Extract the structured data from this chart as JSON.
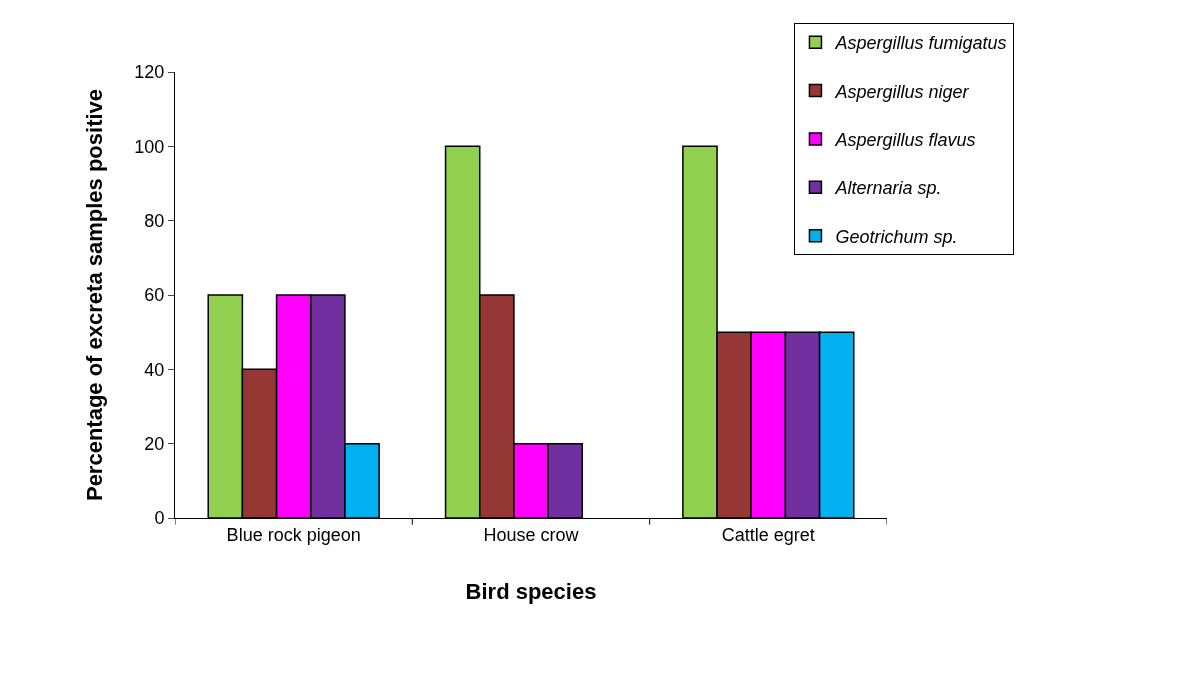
{
  "chart_data": {
    "type": "bar",
    "xlabel": "Bird species",
    "ylabel": "Percentage of excreta samples positive",
    "categories": [
      "Blue rock pigeon",
      "House crow",
      "Cattle egret"
    ],
    "series": [
      {
        "name": "Aspergillus fumigatus",
        "color": "#92d050",
        "values": [
          60,
          100,
          100
        ]
      },
      {
        "name": "Aspergillus niger",
        "color": "#953735",
        "values": [
          40,
          60,
          50
        ]
      },
      {
        "name": "Aspergillus flavus",
        "color": "#ff00ff",
        "values": [
          60,
          20,
          50
        ]
      },
      {
        "name": "Alternaria sp.",
        "color": "#7030a0",
        "values": [
          60,
          20,
          50
        ]
      },
      {
        "name": "Geotrichum sp.",
        "color": "#00b0f0",
        "values": [
          20,
          null,
          50
        ]
      }
    ],
    "ylim": [
      0,
      120
    ],
    "yticks": [
      0,
      20,
      40,
      60,
      80,
      100,
      120
    ],
    "legend": "top right"
  }
}
